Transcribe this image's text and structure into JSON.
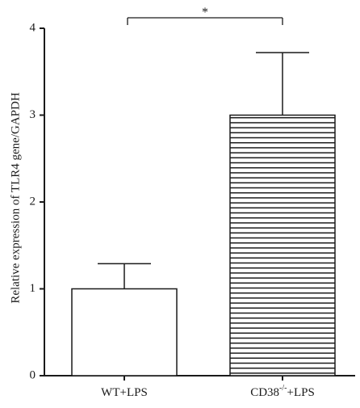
{
  "chart_data": {
    "type": "bar",
    "categories": [
      "WT+LPS",
      "CD38"
    ],
    "category_superscript": [
      "",
      "-/-"
    ],
    "category_suffix": [
      "",
      "+LPS"
    ],
    "values": [
      1.0,
      3.0
    ],
    "error_upper": [
      1.29,
      3.72
    ],
    "ylabel": "Relative expression of TLR4 gene/GAPDH",
    "xlabel": "",
    "ylim": [
      0,
      4
    ],
    "yticks": [
      "0",
      "1",
      "2",
      "3",
      "4"
    ],
    "grid": false,
    "legend": "none",
    "bar_fill": [
      "white",
      "horizontal-stripes"
    ],
    "significance": {
      "between": [
        0,
        1
      ],
      "label": "*"
    },
    "colors": {
      "axis": "#1a1a1a",
      "bar_stroke": "#1a1a1a",
      "bar_fill": "#ffffff"
    }
  }
}
